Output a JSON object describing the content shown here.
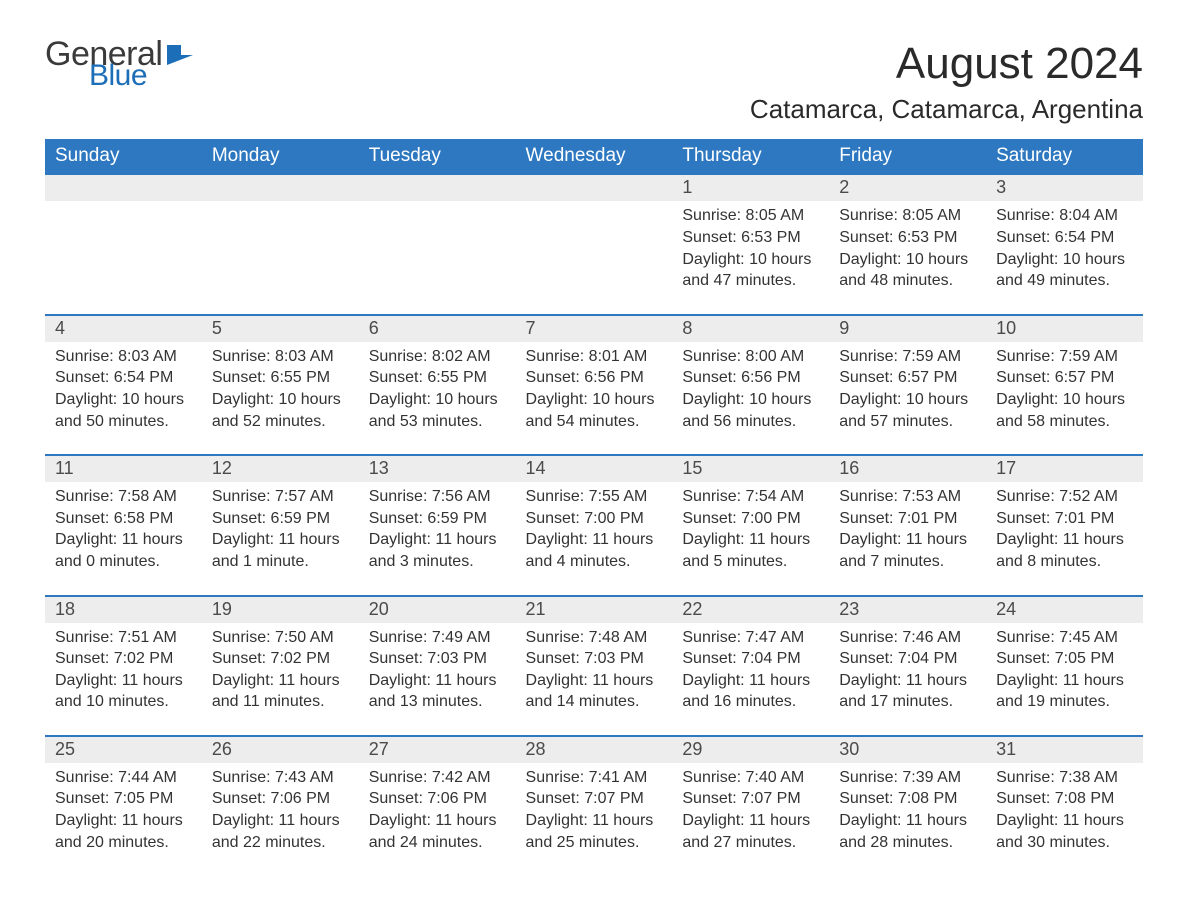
{
  "logo": {
    "part1": "General",
    "part2": "Blue"
  },
  "title": "August 2024",
  "location": "Catamarca, Catamarca, Argentina",
  "colors": {
    "header_bg": "#2d78c0",
    "header_text": "#ffffff",
    "daynum_bg": "#ededed",
    "accent_border": "#2d78c0",
    "logo_gray": "#3a3a3a",
    "logo_blue": "#1d6eb8",
    "body_text": "#333333",
    "background": "#ffffff"
  },
  "typography": {
    "title_fontsize": 44,
    "location_fontsize": 26,
    "th_fontsize": 19,
    "daynum_fontsize": 18,
    "detail_fontsize": 16,
    "font_family": "Arial"
  },
  "weekdays": [
    "Sunday",
    "Monday",
    "Tuesday",
    "Wednesday",
    "Thursday",
    "Friday",
    "Saturday"
  ],
  "weeks": [
    [
      null,
      null,
      null,
      null,
      {
        "n": "1",
        "sr": "8:05 AM",
        "ss": "6:53 PM",
        "dl": "10 hours and 47 minutes."
      },
      {
        "n": "2",
        "sr": "8:05 AM",
        "ss": "6:53 PM",
        "dl": "10 hours and 48 minutes."
      },
      {
        "n": "3",
        "sr": "8:04 AM",
        "ss": "6:54 PM",
        "dl": "10 hours and 49 minutes."
      }
    ],
    [
      {
        "n": "4",
        "sr": "8:03 AM",
        "ss": "6:54 PM",
        "dl": "10 hours and 50 minutes."
      },
      {
        "n": "5",
        "sr": "8:03 AM",
        "ss": "6:55 PM",
        "dl": "10 hours and 52 minutes."
      },
      {
        "n": "6",
        "sr": "8:02 AM",
        "ss": "6:55 PM",
        "dl": "10 hours and 53 minutes."
      },
      {
        "n": "7",
        "sr": "8:01 AM",
        "ss": "6:56 PM",
        "dl": "10 hours and 54 minutes."
      },
      {
        "n": "8",
        "sr": "8:00 AM",
        "ss": "6:56 PM",
        "dl": "10 hours and 56 minutes."
      },
      {
        "n": "9",
        "sr": "7:59 AM",
        "ss": "6:57 PM",
        "dl": "10 hours and 57 minutes."
      },
      {
        "n": "10",
        "sr": "7:59 AM",
        "ss": "6:57 PM",
        "dl": "10 hours and 58 minutes."
      }
    ],
    [
      {
        "n": "11",
        "sr": "7:58 AM",
        "ss": "6:58 PM",
        "dl": "11 hours and 0 minutes."
      },
      {
        "n": "12",
        "sr": "7:57 AM",
        "ss": "6:59 PM",
        "dl": "11 hours and 1 minute."
      },
      {
        "n": "13",
        "sr": "7:56 AM",
        "ss": "6:59 PM",
        "dl": "11 hours and 3 minutes."
      },
      {
        "n": "14",
        "sr": "7:55 AM",
        "ss": "7:00 PM",
        "dl": "11 hours and 4 minutes."
      },
      {
        "n": "15",
        "sr": "7:54 AM",
        "ss": "7:00 PM",
        "dl": "11 hours and 5 minutes."
      },
      {
        "n": "16",
        "sr": "7:53 AM",
        "ss": "7:01 PM",
        "dl": "11 hours and 7 minutes."
      },
      {
        "n": "17",
        "sr": "7:52 AM",
        "ss": "7:01 PM",
        "dl": "11 hours and 8 minutes."
      }
    ],
    [
      {
        "n": "18",
        "sr": "7:51 AM",
        "ss": "7:02 PM",
        "dl": "11 hours and 10 minutes."
      },
      {
        "n": "19",
        "sr": "7:50 AM",
        "ss": "7:02 PM",
        "dl": "11 hours and 11 minutes."
      },
      {
        "n": "20",
        "sr": "7:49 AM",
        "ss": "7:03 PM",
        "dl": "11 hours and 13 minutes."
      },
      {
        "n": "21",
        "sr": "7:48 AM",
        "ss": "7:03 PM",
        "dl": "11 hours and 14 minutes."
      },
      {
        "n": "22",
        "sr": "7:47 AM",
        "ss": "7:04 PM",
        "dl": "11 hours and 16 minutes."
      },
      {
        "n": "23",
        "sr": "7:46 AM",
        "ss": "7:04 PM",
        "dl": "11 hours and 17 minutes."
      },
      {
        "n": "24",
        "sr": "7:45 AM",
        "ss": "7:05 PM",
        "dl": "11 hours and 19 minutes."
      }
    ],
    [
      {
        "n": "25",
        "sr": "7:44 AM",
        "ss": "7:05 PM",
        "dl": "11 hours and 20 minutes."
      },
      {
        "n": "26",
        "sr": "7:43 AM",
        "ss": "7:06 PM",
        "dl": "11 hours and 22 minutes."
      },
      {
        "n": "27",
        "sr": "7:42 AM",
        "ss": "7:06 PM",
        "dl": "11 hours and 24 minutes."
      },
      {
        "n": "28",
        "sr": "7:41 AM",
        "ss": "7:07 PM",
        "dl": "11 hours and 25 minutes."
      },
      {
        "n": "29",
        "sr": "7:40 AM",
        "ss": "7:07 PM",
        "dl": "11 hours and 27 minutes."
      },
      {
        "n": "30",
        "sr": "7:39 AM",
        "ss": "7:08 PM",
        "dl": "11 hours and 28 minutes."
      },
      {
        "n": "31",
        "sr": "7:38 AM",
        "ss": "7:08 PM",
        "dl": "11 hours and 30 minutes."
      }
    ]
  ],
  "labels": {
    "sunrise": "Sunrise: ",
    "sunset": "Sunset: ",
    "daylight": "Daylight: "
  }
}
